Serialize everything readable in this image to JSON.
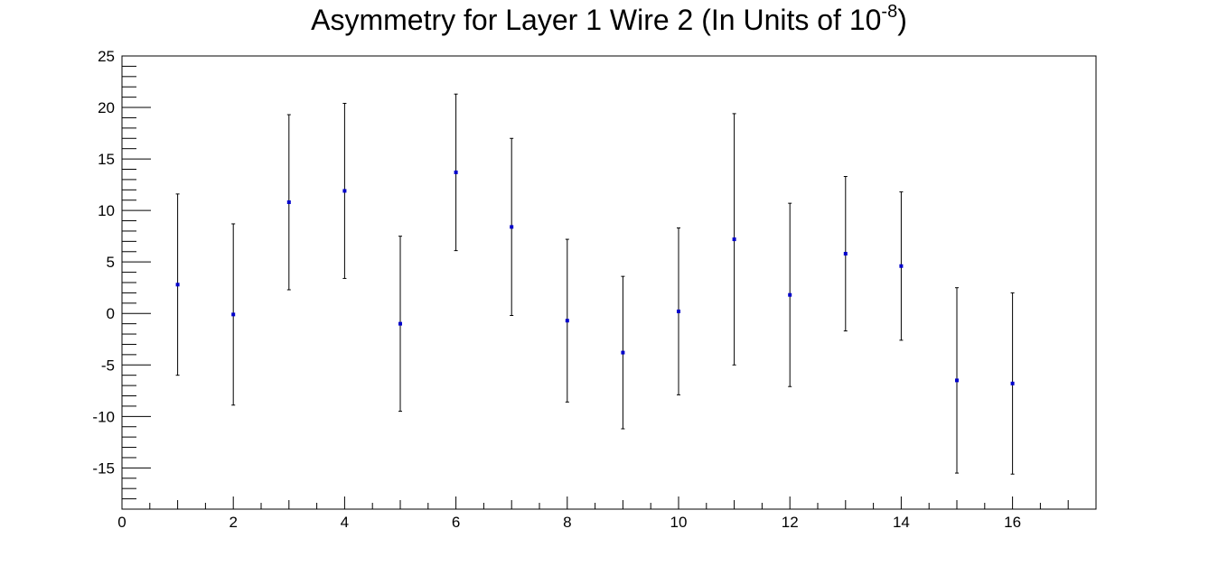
{
  "chart_data": {
    "type": "scatter",
    "title": "Asymmetry for Layer 1 Wire 2 (In Units of 10",
    "title_superscript": "-8",
    "title_suffix": ")",
    "xlabel": "",
    "ylabel": "",
    "xlim": [
      0,
      17.5
    ],
    "ylim": [
      -19,
      25
    ],
    "x_ticks": [
      0,
      2,
      4,
      6,
      8,
      10,
      12,
      14,
      16
    ],
    "y_ticks": [
      -15,
      -10,
      -5,
      0,
      5,
      10,
      15,
      20,
      25
    ],
    "grid": false,
    "marker_color": "#0000cc",
    "errorbar_color": "#000000",
    "points": [
      {
        "x": 1,
        "y": 2.8,
        "err": 8.8
      },
      {
        "x": 2,
        "y": -0.1,
        "err": 8.8
      },
      {
        "x": 3,
        "y": 10.8,
        "err": 8.5
      },
      {
        "x": 4,
        "y": 11.9,
        "err": 8.5
      },
      {
        "x": 5,
        "y": -1.0,
        "err": 8.5
      },
      {
        "x": 6,
        "y": 13.7,
        "err": 7.6
      },
      {
        "x": 7,
        "y": 8.4,
        "err": 8.6
      },
      {
        "x": 8,
        "y": -0.7,
        "err": 7.9
      },
      {
        "x": 9,
        "y": -3.8,
        "err": 7.4
      },
      {
        "x": 10,
        "y": 0.2,
        "err": 8.1
      },
      {
        "x": 11,
        "y": 7.2,
        "err": 12.2
      },
      {
        "x": 12,
        "y": 1.8,
        "err": 8.9
      },
      {
        "x": 13,
        "y": 5.8,
        "err": 7.5
      },
      {
        "x": 14,
        "y": 4.6,
        "err": 7.2
      },
      {
        "x": 15,
        "y": -6.5,
        "err": 9.0
      },
      {
        "x": 16,
        "y": -6.8,
        "err": 8.8
      }
    ]
  }
}
